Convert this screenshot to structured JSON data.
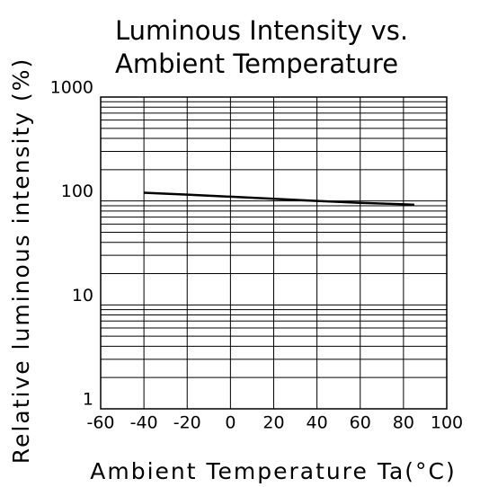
{
  "chart_data": {
    "type": "line",
    "title": [
      "Luminous Intensity vs.",
      "Ambient Temperature"
    ],
    "xlabel": "Ambient Temperature Ta(°C)",
    "ylabel": "Relative luminous intensity (%)",
    "x": [
      -40,
      -20,
      0,
      20,
      40,
      60,
      80,
      85
    ],
    "series": [
      {
        "name": "Relative luminous intensity",
        "color": "#000000",
        "values": [
          120,
          115,
          110,
          105,
          100,
          96,
          93,
          92
        ]
      }
    ],
    "xlim": [
      -60,
      100
    ],
    "xticks": [
      -60,
      -40,
      -20,
      0,
      20,
      40,
      60,
      80,
      100
    ],
    "ylim": [
      1,
      1000
    ],
    "yticks": [
      1,
      10,
      100,
      1000
    ],
    "ylog": true,
    "grid": true
  }
}
